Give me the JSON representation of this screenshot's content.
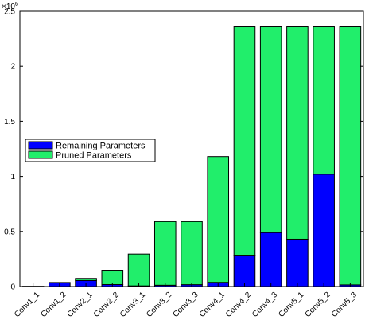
{
  "chart_data": {
    "type": "bar",
    "stacked": true,
    "categories": [
      "Conv1_1",
      "Conv1_2",
      "Conv2_1",
      "Conv2_2",
      "Conv3_1",
      "Conv3_2",
      "Conv3_3",
      "Conv4_1",
      "Conv4_2",
      "Conv4_3",
      "Conv5_1",
      "Conv5_2",
      "Conv5_3"
    ],
    "series": [
      {
        "name": "Remaining Parameters",
        "color": "#0000ff",
        "values": [
          1200,
          35000,
          55000,
          18000,
          6000,
          12000,
          17000,
          38000,
          285000,
          490000,
          430000,
          1020000,
          15000
        ]
      },
      {
        "name": "Pruned Parameters",
        "color": "#21ee6b",
        "values": [
          600,
          2000,
          19000,
          130000,
          289000,
          578000,
          573000,
          1142000,
          2074000,
          1869000,
          1929000,
          1339000,
          2344000
        ]
      }
    ],
    "y_tick_labels": [
      "0",
      "0.5",
      "1",
      "1.5",
      "2",
      "2.5"
    ],
    "y_tick_values": [
      0,
      500000,
      1000000,
      1500000,
      2000000,
      2500000
    ],
    "y_exponent_label": "×10",
    "y_exponent_power": "6",
    "ylim": [
      0,
      2500000
    ],
    "legend_position": "left-middle",
    "grid": false
  }
}
